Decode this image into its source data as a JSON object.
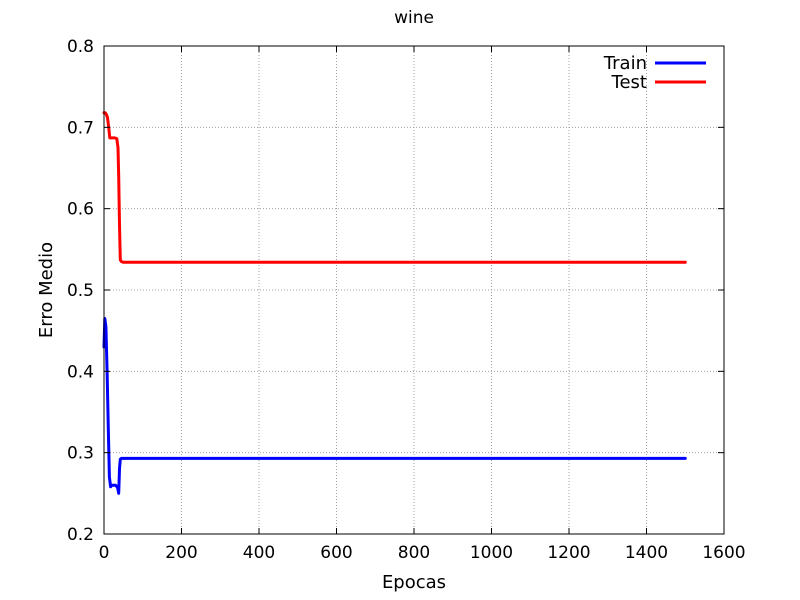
{
  "chart_data": {
    "type": "line",
    "title": "wine",
    "xlabel": "Epocas",
    "ylabel": "Erro Medio",
    "xlim": [
      0,
      1600
    ],
    "ylim": [
      0.2,
      0.8
    ],
    "xticks": [
      0,
      200,
      400,
      600,
      800,
      1000,
      1200,
      1400,
      1600
    ],
    "yticks": [
      0.2,
      0.3,
      0.4,
      0.5,
      0.6,
      0.7,
      0.8
    ],
    "grid": true,
    "legend_position": "top-right",
    "series": [
      {
        "name": "Train",
        "color": "#0000ff",
        "x": [
          0,
          2,
          5,
          8,
          11,
          14,
          17,
          20,
          25,
          30,
          35,
          38,
          40,
          42,
          45,
          60,
          100,
          300,
          600,
          900,
          1200,
          1500
        ],
        "y": [
          0.43,
          0.465,
          0.455,
          0.4,
          0.33,
          0.27,
          0.258,
          0.26,
          0.26,
          0.26,
          0.257,
          0.25,
          0.28,
          0.292,
          0.293,
          0.293,
          0.293,
          0.293,
          0.293,
          0.293,
          0.293,
          0.293
        ]
      },
      {
        "name": "Test",
        "color": "#ff0000",
        "x": [
          0,
          3,
          6,
          9,
          12,
          15,
          18,
          22,
          28,
          33,
          36,
          38,
          40,
          42,
          45,
          50,
          60,
          100,
          300,
          600,
          900,
          1200,
          1500
        ],
        "y": [
          0.718,
          0.718,
          0.716,
          0.712,
          0.7,
          0.687,
          0.687,
          0.687,
          0.687,
          0.686,
          0.675,
          0.64,
          0.58,
          0.537,
          0.535,
          0.534,
          0.534,
          0.534,
          0.534,
          0.534,
          0.534,
          0.534,
          0.534
        ]
      }
    ]
  }
}
